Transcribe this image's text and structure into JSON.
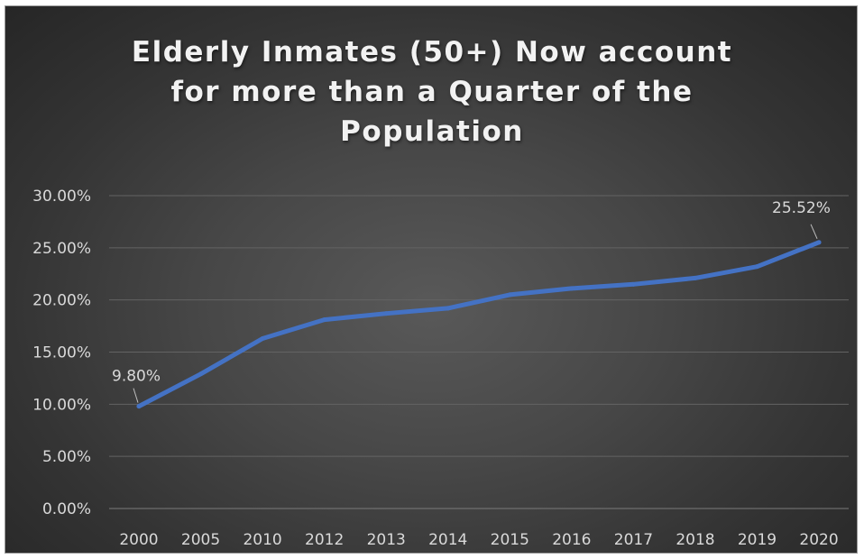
{
  "chart_data": {
    "type": "line",
    "title_lines": [
      "Elderly Inmates (50+) Now account",
      "for more than a Quarter of the",
      "Population"
    ],
    "xlabel": "",
    "ylabel": "",
    "categories": [
      "2000",
      "2005",
      "2010",
      "2012",
      "2013",
      "2014",
      "2015",
      "2016",
      "2017",
      "2018",
      "2019",
      "2020"
    ],
    "series": [
      {
        "values": [
          9.8,
          12.9,
          16.3,
          18.1,
          18.7,
          19.2,
          20.5,
          21.1,
          21.5,
          22.1,
          23.2,
          25.52
        ],
        "color": "#4472c4"
      }
    ],
    "ylim": [
      0,
      30
    ],
    "y_ticks": [
      0,
      5,
      10,
      15,
      20,
      25,
      30
    ],
    "y_tick_labels": [
      "0.00%",
      "5.00%",
      "10.00%",
      "15.00%",
      "20.00%",
      "25.00%",
      "30.00%"
    ],
    "data_labels": [
      {
        "category": "2000",
        "text": "9.80%"
      },
      {
        "category": "2020",
        "text": "25.52%"
      }
    ],
    "grid": true,
    "legend": "none"
  }
}
